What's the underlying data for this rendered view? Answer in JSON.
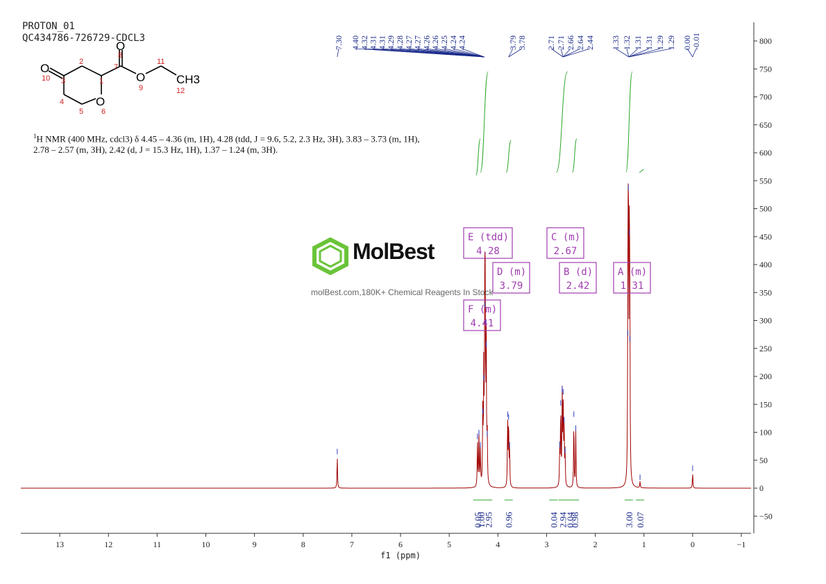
{
  "header": {
    "line1": "PROTON_01",
    "line2": "QC434786-726729-CDCL3"
  },
  "molecule": {
    "atoms": [
      "O",
      "O",
      "O",
      "O",
      "CH3"
    ],
    "numbers": [
      "10",
      "3",
      "2",
      "1",
      "7",
      "8",
      "9",
      "11",
      "12",
      "4",
      "5",
      "6"
    ]
  },
  "description": {
    "prefix": "1",
    "text": "H NMR (400 MHz, cdcl3) δ 4.45 – 4.36 (m, 1H), 4.28 (tdd, J = 9.6, 5.2, 2.3 Hz, 3H), 3.83 – 3.73 (m, 1H), 2.78 – 2.57 (m, 3H), 2.42 (d, J = 15.3 Hz, 1H), 1.37 – 1.24 (m, 3H)."
  },
  "watermark": {
    "brand": "MolBest",
    "tagline": "molBest.com,180K+ Chemical Reagents In Stock"
  },
  "chart_data": {
    "type": "line",
    "xlabel": "f1 (ppm)",
    "xlim": [
      13.8,
      -1.2
    ],
    "ylim": [
      -80,
      840
    ],
    "x_ticks": [
      13,
      12,
      11,
      10,
      9,
      8,
      7,
      6,
      5,
      4,
      3,
      2,
      1,
      0,
      -1
    ],
    "y_ticks": [
      -50,
      0,
      50,
      100,
      150,
      200,
      250,
      300,
      350,
      400,
      450,
      500,
      550,
      600,
      650,
      700,
      750,
      800
    ],
    "peaks": [
      {
        "ppm": 7.3,
        "height": 58
      },
      {
        "ppm": 4.42,
        "height": 85
      },
      {
        "ppm": 4.39,
        "height": 92
      },
      {
        "ppm": 4.36,
        "height": 70
      },
      {
        "ppm": 4.31,
        "height": 130
      },
      {
        "ppm": 4.29,
        "height": 190
      },
      {
        "ppm": 4.27,
        "height": 320
      },
      {
        "ppm": 4.26,
        "height": 290
      },
      {
        "ppm": 4.24,
        "height": 250
      },
      {
        "ppm": 4.22,
        "height": 90
      },
      {
        "ppm": 3.8,
        "height": 125
      },
      {
        "ppm": 3.78,
        "height": 120
      },
      {
        "ppm": 3.76,
        "height": 70
      },
      {
        "ppm": 2.73,
        "height": 70
      },
      {
        "ppm": 2.71,
        "height": 145
      },
      {
        "ppm": 2.68,
        "height": 170
      },
      {
        "ppm": 2.66,
        "height": 165
      },
      {
        "ppm": 2.64,
        "height": 115
      },
      {
        "ppm": 2.62,
        "height": 60
      },
      {
        "ppm": 2.44,
        "height": 125
      },
      {
        "ppm": 2.4,
        "height": 100
      },
      {
        "ppm": 1.33,
        "height": 270
      },
      {
        "ppm": 1.32,
        "height": 530
      },
      {
        "ppm": 1.3,
        "height": 450
      },
      {
        "ppm": 1.29,
        "height": 260
      },
      {
        "ppm": 1.08,
        "height": 12
      },
      {
        "ppm": 0.0,
        "height": 28
      }
    ],
    "peak_labels": [
      "7.30",
      "4.40",
      "4.32",
      "4.31",
      "4.31",
      "4.29",
      "4.28",
      "4.27",
      "4.27",
      "4.26",
      "4.26",
      "4.25",
      "4.24",
      "4.24",
      "3.79",
      "3.78",
      "2.71",
      "2.71",
      "2.66",
      "2.64",
      "2.44",
      "1.33",
      "1.32",
      "1.31",
      "1.31",
      "1.29",
      "1.29",
      "0.00",
      "-0.01"
    ],
    "multiplets": [
      {
        "id": "E",
        "mult": "tdd",
        "shift": "4.28"
      },
      {
        "id": "C",
        "mult": "m",
        "shift": "2.67"
      },
      {
        "id": "D",
        "mult": "m",
        "shift": "3.79"
      },
      {
        "id": "B",
        "mult": "d",
        "shift": "2.42"
      },
      {
        "id": "A",
        "mult": "m",
        "shift": "1.31"
      },
      {
        "id": "F",
        "mult": "m",
        "shift": "4.41"
      }
    ],
    "integrals": [
      {
        "ppm": 4.42,
        "value": "0.05"
      },
      {
        "ppm": 4.35,
        "value": "1.00"
      },
      {
        "ppm": 4.2,
        "value": "2.95"
      },
      {
        "ppm": 3.78,
        "value": "0.96"
      },
      {
        "ppm": 2.86,
        "value": "0.04"
      },
      {
        "ppm": 2.67,
        "value": "2.94"
      },
      {
        "ppm": 2.52,
        "value": "0.04"
      },
      {
        "ppm": 2.42,
        "value": "0.98"
      },
      {
        "ppm": 1.31,
        "value": "3.00"
      },
      {
        "ppm": 1.08,
        "value": "0.07"
      }
    ]
  },
  "colors": {
    "spectrum": "#a00000",
    "peak_label": "#1a2a8a",
    "integral": "#2aa52a",
    "multiplet_box": "#a03cb0",
    "axis": "#333333",
    "watermark_green": "#6ac43a"
  }
}
